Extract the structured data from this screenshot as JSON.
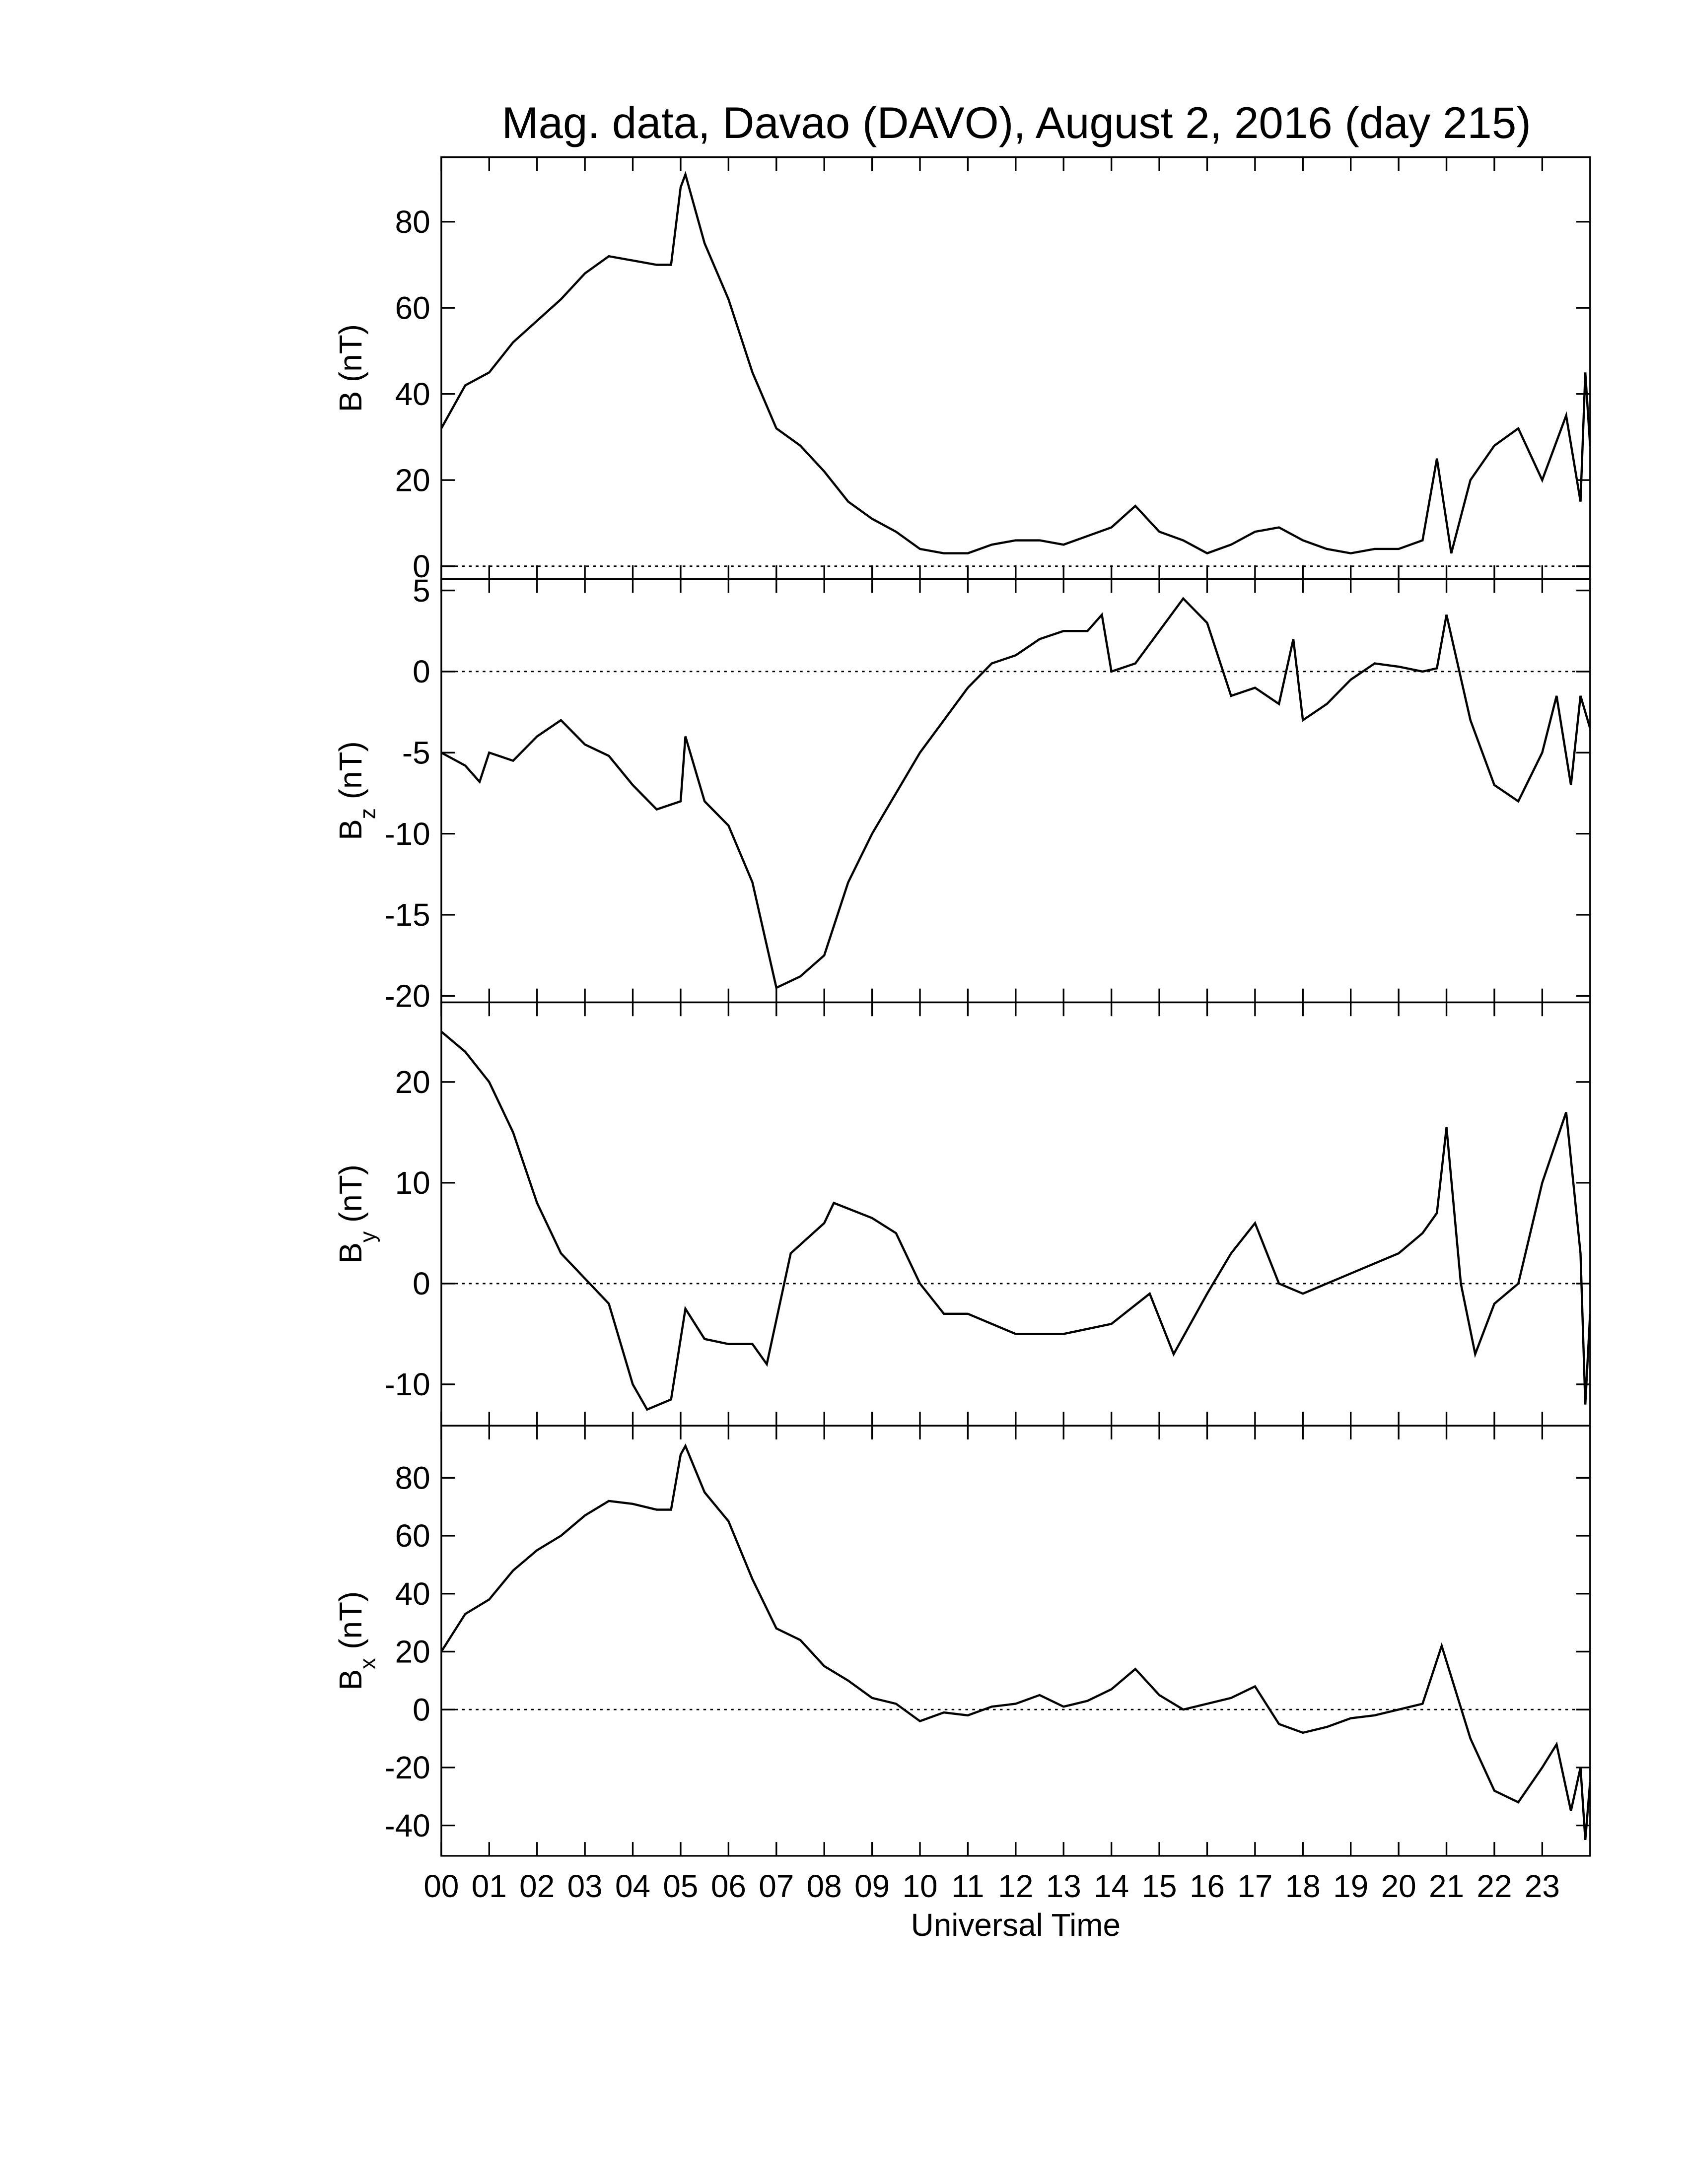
{
  "title": "Mag. data, Davao (DAVO), August 2, 2016 (day 215)",
  "chart_data": [
    {
      "type": "line",
      "ylabel_base": "B",
      "ylabel_unit": "(nT)",
      "ylim": [
        -3,
        95
      ],
      "yticks": [
        0,
        20,
        40,
        60,
        80
      ],
      "zero_line": true,
      "color": "#000000",
      "x": [
        0,
        0.5,
        1,
        1.5,
        2,
        2.5,
        3,
        3.5,
        4,
        4.5,
        4.8,
        5,
        5.1,
        5.5,
        6,
        6.5,
        7,
        7.5,
        8,
        8.5,
        9,
        9.5,
        10,
        10.5,
        11,
        11.5,
        12,
        12.5,
        13,
        13.5,
        14,
        14.5,
        15,
        15.5,
        16,
        16.5,
        17,
        17.5,
        18,
        18.5,
        19,
        19.5,
        20,
        20.5,
        20.8,
        21.1,
        21.5,
        22,
        22.5,
        23,
        23.5,
        23.8,
        23.9,
        24
      ],
      "values": [
        32,
        42,
        45,
        52,
        57,
        62,
        68,
        72,
        71,
        70,
        70,
        88,
        91,
        75,
        62,
        45,
        32,
        28,
        22,
        15,
        11,
        8,
        4,
        3,
        3,
        5,
        6,
        6,
        5,
        7,
        9,
        14,
        8,
        6,
        3,
        5,
        8,
        9,
        6,
        4,
        3,
        4,
        4,
        6,
        25,
        3,
        20,
        28,
        32,
        20,
        35,
        15,
        45,
        28
      ]
    },
    {
      "type": "line",
      "ylabel_base": "B",
      "ylabel_sub": "z",
      "ylabel_unit": "(nT)",
      "ylim": [
        -20.4,
        5.7
      ],
      "yticks": [
        -20,
        -15,
        -10,
        -5,
        0,
        5
      ],
      "zero_line": true,
      "color": "#000000",
      "x": [
        0,
        0.5,
        0.8,
        1,
        1.5,
        2,
        2.5,
        3,
        3.5,
        4,
        4.5,
        5,
        5.1,
        5.5,
        6,
        6.5,
        7,
        7.5,
        8,
        8.5,
        9,
        9.5,
        10,
        10.5,
        11,
        11.5,
        12,
        12.5,
        13,
        13.5,
        13.8,
        14,
        14.5,
        15,
        15.5,
        16,
        16.5,
        17,
        17.5,
        17.8,
        18,
        18.5,
        19,
        19.5,
        20,
        20.5,
        20.8,
        21,
        21.5,
        22,
        22.5,
        23,
        23.3,
        23.6,
        23.8,
        24
      ],
      "values": [
        -5,
        -5.8,
        -6.8,
        -5,
        -5.5,
        -4,
        -3,
        -4.5,
        -5.2,
        -7,
        -8.5,
        -8,
        -4,
        -8,
        -9.5,
        -13,
        -19.5,
        -18.8,
        -17.5,
        -13,
        -10,
        -7.5,
        -5,
        -3,
        -1,
        0.5,
        1,
        2,
        2.5,
        2.5,
        3.5,
        0,
        0.5,
        2.5,
        4.5,
        3,
        -1.5,
        -1,
        -2,
        2,
        -3,
        -2,
        -0.5,
        0.5,
        0.3,
        0,
        0.2,
        3.5,
        -3,
        -7,
        -8,
        -5,
        -1.5,
        -7,
        -1.5,
        -3.5
      ]
    },
    {
      "type": "line",
      "ylabel_base": "B",
      "ylabel_sub": "y",
      "ylabel_unit": "(nT)",
      "ylim": [
        -14.1,
        27.9
      ],
      "yticks": [
        -10,
        0,
        10,
        20
      ],
      "zero_line": true,
      "color": "#000000",
      "x": [
        0,
        0.5,
        1,
        1.5,
        2,
        2.5,
        3,
        3.5,
        4,
        4.3,
        4.8,
        5.1,
        5.5,
        6,
        6.5,
        6.8,
        7.3,
        8,
        8.2,
        9,
        9.5,
        10,
        10.5,
        11,
        12,
        13,
        14,
        14.8,
        15.3,
        16,
        16.5,
        17,
        17.5,
        18,
        19,
        20,
        20.5,
        20.8,
        21,
        21.3,
        21.6,
        22,
        22.5,
        23,
        23.5,
        23.8,
        23.9,
        24
      ],
      "values": [
        25,
        23,
        20,
        15,
        8,
        3,
        0.5,
        -2,
        -10,
        -12.5,
        -11.5,
        -2.5,
        -5.5,
        -6,
        -6,
        -8,
        3,
        6,
        8,
        6.5,
        5,
        0,
        -3,
        -3,
        -5,
        -5,
        -4,
        -1,
        -7,
        -1,
        3,
        6,
        0,
        -1,
        1,
        3,
        5,
        7,
        15.5,
        0,
        -7,
        -2,
        0,
        10,
        17,
        3,
        -12,
        -3
      ]
    },
    {
      "type": "line",
      "ylabel_base": "B",
      "ylabel_sub": "x",
      "ylabel_unit": "(nT)",
      "ylim": [
        -50.5,
        98
      ],
      "yticks": [
        -40,
        -20,
        0,
        20,
        40,
        60,
        80
      ],
      "zero_line": true,
      "color": "#000000",
      "xlabel": "Universal Time",
      "xlim": [
        0,
        24
      ],
      "xticks": [
        {
          "value": 0,
          "label": "00"
        },
        {
          "value": 1,
          "label": "01"
        },
        {
          "value": 2,
          "label": "02"
        },
        {
          "value": 3,
          "label": "03"
        },
        {
          "value": 4,
          "label": "04"
        },
        {
          "value": 5,
          "label": "05"
        },
        {
          "value": 6,
          "label": "06"
        },
        {
          "value": 7,
          "label": "07"
        },
        {
          "value": 8,
          "label": "08"
        },
        {
          "value": 9,
          "label": "09"
        },
        {
          "value": 10,
          "label": "10"
        },
        {
          "value": 11,
          "label": "11"
        },
        {
          "value": 12,
          "label": "12"
        },
        {
          "value": 13,
          "label": "13"
        },
        {
          "value": 14,
          "label": "14"
        },
        {
          "value": 15,
          "label": "15"
        },
        {
          "value": 16,
          "label": "16"
        },
        {
          "value": 17,
          "label": "17"
        },
        {
          "value": 18,
          "label": "18"
        },
        {
          "value": 19,
          "label": "19"
        },
        {
          "value": 20,
          "label": "20"
        },
        {
          "value": 21,
          "label": "21"
        },
        {
          "value": 22,
          "label": "22"
        },
        {
          "value": 23,
          "label": "23"
        }
      ],
      "x": [
        0,
        0.5,
        1,
        1.5,
        2,
        2.5,
        3,
        3.5,
        4,
        4.5,
        4.8,
        5,
        5.1,
        5.5,
        6,
        6.5,
        7,
        7.5,
        8,
        8.5,
        9,
        9.5,
        10,
        10.5,
        11,
        11.5,
        12,
        12.5,
        13,
        13.5,
        14,
        14.5,
        15,
        15.5,
        16,
        16.5,
        17,
        17.5,
        18,
        18.5,
        19,
        19.5,
        20,
        20.5,
        20.9,
        21.5,
        22,
        22.5,
        23,
        23.3,
        23.6,
        23.8,
        23.9,
        24
      ],
      "values": [
        20,
        33,
        38,
        48,
        55,
        60,
        67,
        72,
        71,
        69,
        69,
        88,
        91,
        75,
        65,
        45,
        28,
        24,
        15,
        10,
        4,
        2,
        -4,
        -1,
        -2,
        1,
        2,
        5,
        1,
        3,
        7,
        14,
        5,
        0,
        2,
        4,
        8,
        -5,
        -8,
        -6,
        -3,
        -2,
        0,
        2,
        22,
        -10,
        -28,
        -32,
        -20,
        -12,
        -35,
        -20,
        -45,
        -25
      ]
    }
  ]
}
